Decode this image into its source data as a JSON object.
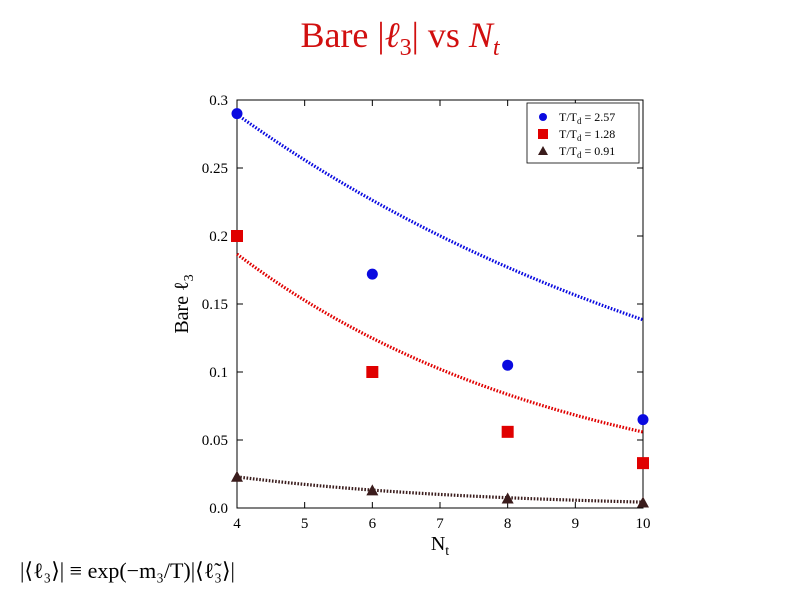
{
  "slide": {
    "title_prefix": "Bare |",
    "title_ell": "ℓ",
    "title_ell_sub": "3",
    "title_middle": "| vs ",
    "title_N": "N",
    "title_N_sub": "t",
    "formula": "|⟨ℓ₃⟩| ≡ exp(−m₃/T)|⟨ℓ̃₃⟩|"
  },
  "colors": {
    "title": "#d10f0f",
    "series_blue": "#0a0ae0",
    "series_red": "#e00000",
    "series_dark": "#3a1c1c"
  },
  "chart_data": {
    "type": "scatter",
    "title": "Bare |ℓ3| vs Nt",
    "xlabel": "Nt",
    "ylabel": "Bare ℓ3",
    "xlim": [
      4,
      10
    ],
    "ylim": [
      0,
      0.3
    ],
    "xticks": [
      4,
      5,
      6,
      7,
      8,
      9,
      10
    ],
    "yticks": [
      0.0,
      0.05,
      0.1,
      0.15,
      0.2,
      0.25,
      0.3
    ],
    "ytick_labels": [
      "0.0",
      "0.05",
      "0.1",
      "0.15",
      "0.2",
      "0.25",
      "0.3"
    ],
    "legend_position": "top-right",
    "grid": false,
    "series": [
      {
        "name": "T/Td = 2.57",
        "marker": "circle",
        "color": "#0a0ae0",
        "x": [
          4,
          6,
          8,
          10
        ],
        "y": [
          0.29,
          0.172,
          0.105,
          0.065
        ],
        "fit": {
          "form": "exponential",
          "a": 0.4731,
          "b": -0.1229,
          "x_range": [
            4,
            10
          ]
        }
      },
      {
        "name": "T/Td = 1.28",
        "marker": "square",
        "color": "#e00000",
        "x": [
          4,
          6,
          8,
          10
        ],
        "y": [
          0.2,
          0.1,
          0.056,
          0.033
        ],
        "fit": {
          "form": "exponential",
          "a": 0.4173,
          "b": -0.2011,
          "x_range": [
            4,
            10
          ]
        }
      },
      {
        "name": "T/Td = 0.91",
        "marker": "triangle",
        "color": "#3a1c1c",
        "x": [
          4,
          6,
          8,
          10
        ],
        "y": [
          0.023,
          0.013,
          0.007,
          0.004
        ],
        "fit": {
          "form": "exponential",
          "a": 0.0695,
          "b": -0.2773,
          "x_range": [
            4,
            10
          ]
        }
      }
    ]
  }
}
